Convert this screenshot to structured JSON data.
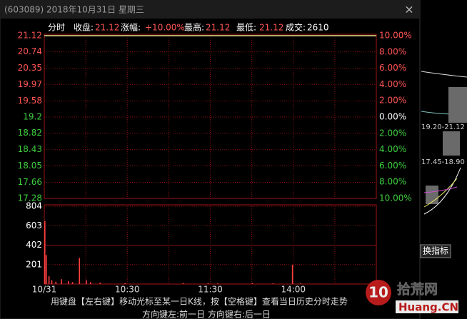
{
  "window": {
    "title": "(603089) 2018年10月31日 星期三",
    "close": "×"
  },
  "info": {
    "mode": "分时",
    "items": [
      {
        "label": "收盘:",
        "value": "21.12"
      },
      {
        "label": "涨幅:",
        "value": "+10.00%"
      },
      {
        "label": "最高:",
        "value": "21.12"
      },
      {
        "label": "最低:",
        "value": "21.12"
      },
      {
        "label": "成交:",
        "value": "2610"
      }
    ]
  },
  "chart_data": [
    {
      "type": "line",
      "x": [
        0,
        240
      ],
      "series": [
        {
          "color": "#f0e68c",
          "values": [
            21.12,
            21.12
          ]
        }
      ],
      "xlim": [
        0,
        240
      ],
      "ylim": [
        17.28,
        21.12
      ],
      "yticks": [
        21.12,
        20.74,
        20.35,
        19.97,
        19.58,
        19.2,
        18.82,
        18.43,
        18.05,
        17.66,
        17.28
      ],
      "y2lim": [
        -10,
        10
      ],
      "y2ticks": [
        {
          "value": 10,
          "label": "10.00%"
        },
        {
          "value": 8,
          "label": "8.00%"
        },
        {
          "value": 6,
          "label": "6.00%"
        },
        {
          "value": 4,
          "label": "4.00%"
        },
        {
          "value": 2,
          "label": "2.00%"
        },
        {
          "value": 0,
          "label": "0.00%"
        },
        {
          "value": -2,
          "label": "2.00%"
        },
        {
          "value": -4,
          "label": "4.00%"
        },
        {
          "value": -6,
          "label": "6.00%"
        },
        {
          "value": -8,
          "label": "8.00%"
        },
        {
          "value": -10,
          "label": "10.00%"
        }
      ],
      "xgrid": [
        30,
        60,
        90,
        120,
        150,
        180,
        210
      ],
      "grid": true,
      "up_color": "#ff5454",
      "down_color": "#3fcf3f"
    },
    {
      "type": "bar",
      "x": [
        0,
        1,
        3,
        5,
        8,
        12,
        17,
        20,
        25,
        30,
        33,
        40,
        58,
        100,
        118,
        125,
        150,
        165,
        179,
        185
      ],
      "values": [
        650,
        300,
        80,
        40,
        25,
        50,
        30,
        20,
        270,
        40,
        20,
        15,
        10,
        10,
        10,
        8,
        10,
        8,
        200,
        8
      ],
      "color": "#ff4040",
      "xlim": [
        0,
        240
      ],
      "ylim": [
        0,
        804
      ],
      "yticks": [
        804,
        603,
        402,
        201
      ],
      "xticks": [
        {
          "value": 0,
          "label": "10/31"
        },
        {
          "value": 60,
          "label": "10:30"
        },
        {
          "value": 120,
          "label": "11:30"
        },
        {
          "value": 180,
          "label": "14:00"
        }
      ],
      "xgrid": [
        30,
        60,
        90,
        120,
        150,
        180,
        210
      ],
      "grid": true
    }
  ],
  "footer": {
    "hint": "用键盘【左右键】移动光标至某一日K线，按【空格键】查看当日历史分时走势",
    "keys": "方向键左:前一日    方向键右:后一日"
  },
  "background": {
    "labels": [
      "19.20-21.12",
      "17.45-18.90"
    ],
    "button": "换指标"
  },
  "watermark": {
    "logo": "10",
    "site": "拾荒网",
    "domain": "Huang.CN"
  }
}
